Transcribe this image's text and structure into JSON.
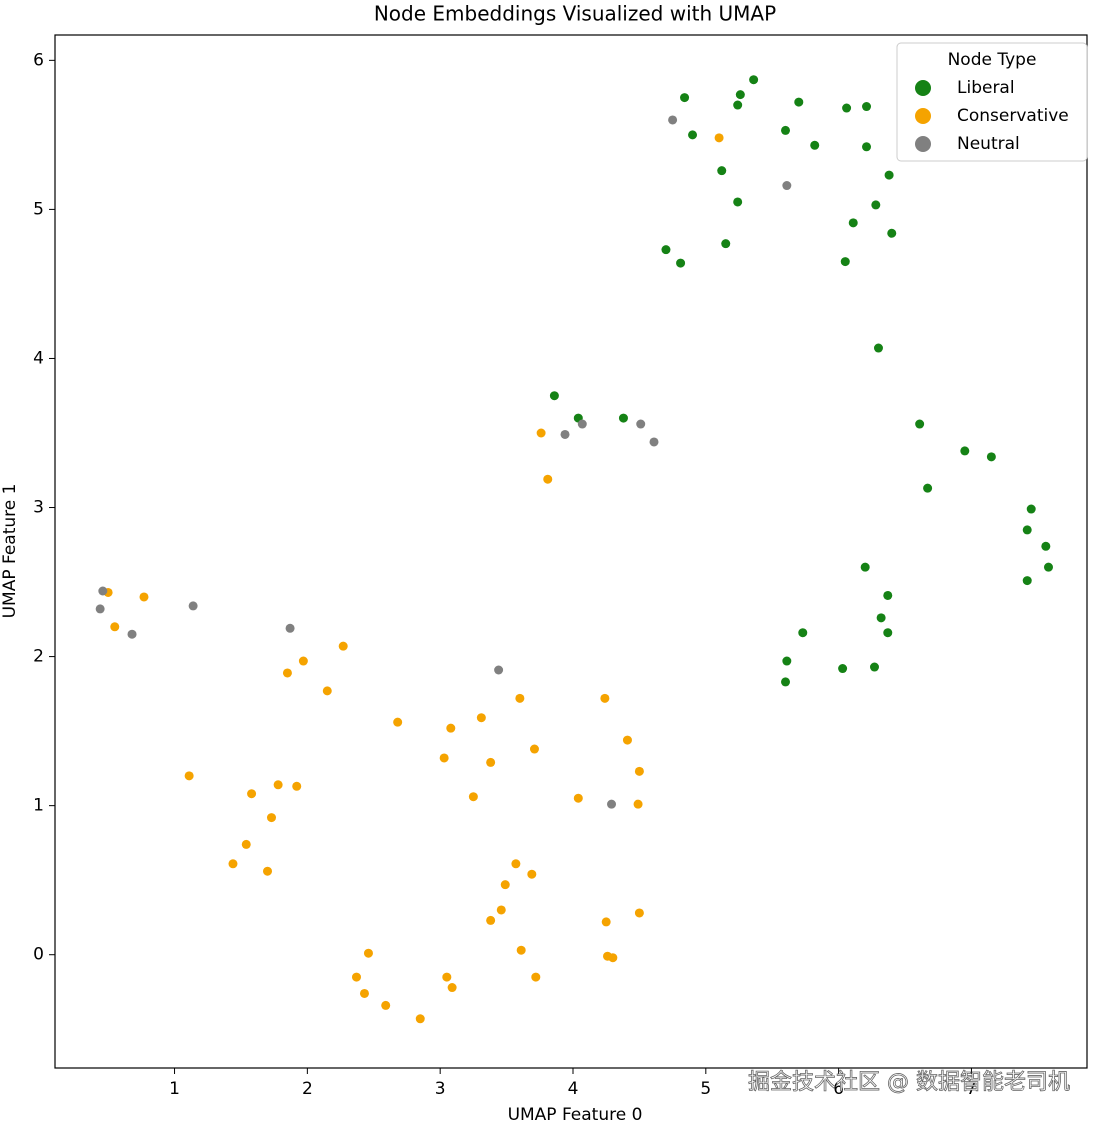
{
  "chart_data": {
    "type": "scatter",
    "title": "Node Embeddings Visualized with UMAP",
    "xlabel": "UMAP Feature 0",
    "ylabel": "UMAP Feature 1",
    "legend_title": "Node Type",
    "legend": "upper right",
    "xlim": [
      0.1,
      7.87
    ],
    "xticks": [
      1,
      2,
      3,
      4,
      5,
      6,
      7
    ],
    "ylim": [
      -0.76,
      6.17
    ],
    "yticks": [
      0,
      1,
      2,
      3,
      4,
      5,
      6
    ],
    "watermark": "掘金技术社区 @ 数据智能老司机",
    "series": [
      {
        "name": "Liberal",
        "color": "#158215",
        "x": [
          5.36,
          4.84,
          5.26,
          5.24,
          4.9,
          5.7,
          5.6,
          5.82,
          6.06,
          6.21,
          6.21,
          6.38,
          5.12,
          5.24,
          6.28,
          6.11,
          6.4,
          5.15,
          4.7,
          4.81,
          6.05,
          6.3,
          3.86,
          4.04,
          4.38,
          6.61,
          6.95,
          7.15,
          6.67,
          7.45,
          7.42,
          7.56,
          7.58,
          7.42,
          6.2,
          6.37,
          6.32,
          6.37,
          5.73,
          5.61,
          6.27,
          6.03,
          5.6
        ],
        "values": [
          5.87,
          5.75,
          5.77,
          5.7,
          5.5,
          5.72,
          5.53,
          5.43,
          5.68,
          5.69,
          5.42,
          5.23,
          5.26,
          5.05,
          5.03,
          4.91,
          4.84,
          4.77,
          4.73,
          4.64,
          4.65,
          4.07,
          3.75,
          3.6,
          3.6,
          3.56,
          3.38,
          3.34,
          3.13,
          2.99,
          2.85,
          2.74,
          2.6,
          2.51,
          2.6,
          2.41,
          2.26,
          2.16,
          2.16,
          1.97,
          1.93,
          1.92,
          1.83
        ]
      },
      {
        "name": "Conservative",
        "color": "#f5a300",
        "x": [
          5.1,
          3.76,
          3.81,
          0.5,
          0.77,
          0.55,
          2.27,
          1.97,
          1.85,
          2.15,
          3.6,
          4.24,
          2.68,
          3.31,
          3.08,
          3.71,
          4.41,
          3.03,
          3.38,
          4.5,
          1.11,
          1.78,
          1.92,
          1.58,
          3.25,
          4.04,
          4.49,
          1.73,
          1.54,
          1.44,
          1.7,
          3.57,
          3.69,
          3.49,
          3.46,
          3.38,
          4.5,
          4.25,
          3.61,
          2.46,
          4.26,
          4.3,
          2.37,
          3.05,
          3.72,
          3.09,
          2.43,
          2.59,
          2.85
        ],
        "values": [
          5.48,
          3.5,
          3.19,
          2.43,
          2.4,
          2.2,
          2.07,
          1.97,
          1.89,
          1.77,
          1.72,
          1.72,
          1.56,
          1.59,
          1.52,
          1.38,
          1.44,
          1.32,
          1.29,
          1.23,
          1.2,
          1.14,
          1.13,
          1.08,
          1.06,
          1.05,
          1.01,
          0.92,
          0.74,
          0.61,
          0.56,
          0.61,
          0.54,
          0.47,
          0.3,
          0.23,
          0.28,
          0.22,
          0.03,
          0.01,
          -0.01,
          -0.02,
          -0.15,
          -0.15,
          -0.15,
          -0.22,
          -0.26,
          -0.34,
          -0.43
        ]
      },
      {
        "name": "Neutral",
        "color": "#808080",
        "x": [
          4.75,
          5.61,
          3.94,
          4.07,
          4.51,
          4.61,
          0.46,
          0.44,
          0.68,
          1.14,
          1.87,
          3.44,
          4.29
        ],
        "values": [
          5.6,
          5.16,
          3.49,
          3.56,
          3.56,
          3.44,
          2.44,
          2.32,
          2.15,
          2.34,
          2.19,
          1.91,
          1.01
        ]
      }
    ]
  }
}
